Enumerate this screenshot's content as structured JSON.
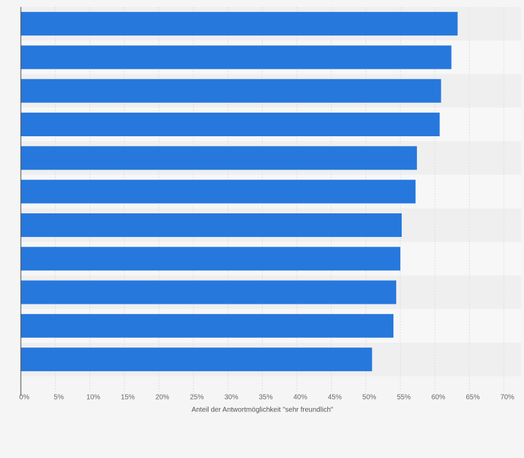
{
  "chart_data": {
    "type": "bar",
    "orientation": "horizontal",
    "categories": [
      "",
      "",
      "",
      "",
      "",
      "",
      "",
      "",
      "",
      "",
      ""
    ],
    "values": [
      63.3,
      62.4,
      60.9,
      60.7,
      57.4,
      57.2,
      55.2,
      55.0,
      54.4,
      54.0,
      50.9
    ],
    "xlabel": "Anteil der Antwortmöglichkeit \"sehr freundlich\"",
    "ylabel": "",
    "xlim": [
      0,
      70
    ],
    "x_ticks": [
      0,
      5,
      10,
      15,
      20,
      25,
      30,
      35,
      40,
      45,
      50,
      55,
      60,
      65,
      70
    ],
    "x_tick_labels": [
      "0%",
      "5%",
      "10%",
      "15%",
      "20%",
      "25%",
      "30%",
      "35%",
      "40%",
      "45%",
      "50%",
      "55%",
      "60%",
      "65%",
      "70%"
    ],
    "grid": true,
    "legend": "none",
    "colors": {
      "bar": "#2778dd",
      "band_light": "#f7f7f7",
      "band_dark": "#efefef",
      "grid": "#dddddd",
      "axis": "#444444",
      "background": "#f5f5f5"
    }
  }
}
